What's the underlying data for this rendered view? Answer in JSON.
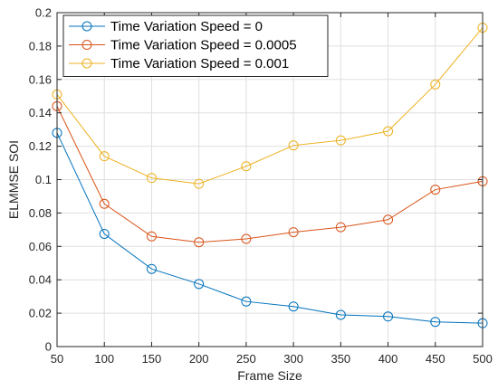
{
  "chart_data": {
    "type": "line",
    "title": "",
    "xlabel": "Frame Size",
    "ylabel": "ELMMSE SOI",
    "xlim": [
      50,
      500
    ],
    "ylim": [
      0,
      0.2
    ],
    "xticks": [
      50,
      100,
      150,
      200,
      250,
      300,
      350,
      400,
      450,
      500
    ],
    "xtick_labels": [
      "50",
      "100",
      "150",
      "200",
      "250",
      "300",
      "350",
      "400",
      "450",
      "500"
    ],
    "yticks": [
      0,
      0.02,
      0.04,
      0.06,
      0.08,
      0.1,
      0.12,
      0.14,
      0.16,
      0.18,
      0.2
    ],
    "ytick_labels": [
      "0",
      "0.02",
      "0.04",
      "0.06",
      "0.08",
      "0.1",
      "0.12",
      "0.14",
      "0.16",
      "0.18",
      "0.2"
    ],
    "grid": true,
    "legend_position": "top-left",
    "x": [
      50,
      100,
      150,
      200,
      250,
      300,
      350,
      400,
      450,
      500
    ],
    "series": [
      {
        "name": "Time Variation Speed = 0",
        "color": "#0072bd",
        "values": [
          0.128,
          0.0675,
          0.0465,
          0.0375,
          0.027,
          0.024,
          0.019,
          0.018,
          0.0148,
          0.014
        ]
      },
      {
        "name": "Time Variation Speed = 0.0005",
        "color": "#d95319",
        "values": [
          0.144,
          0.0855,
          0.066,
          0.0625,
          0.0645,
          0.0685,
          0.0715,
          0.076,
          0.094,
          0.099
        ]
      },
      {
        "name": "Time Variation Speed = 0.001",
        "color": "#edb120",
        "values": [
          0.151,
          0.114,
          0.101,
          0.0975,
          0.108,
          0.1205,
          0.1235,
          0.129,
          0.157,
          0.191
        ]
      }
    ]
  }
}
